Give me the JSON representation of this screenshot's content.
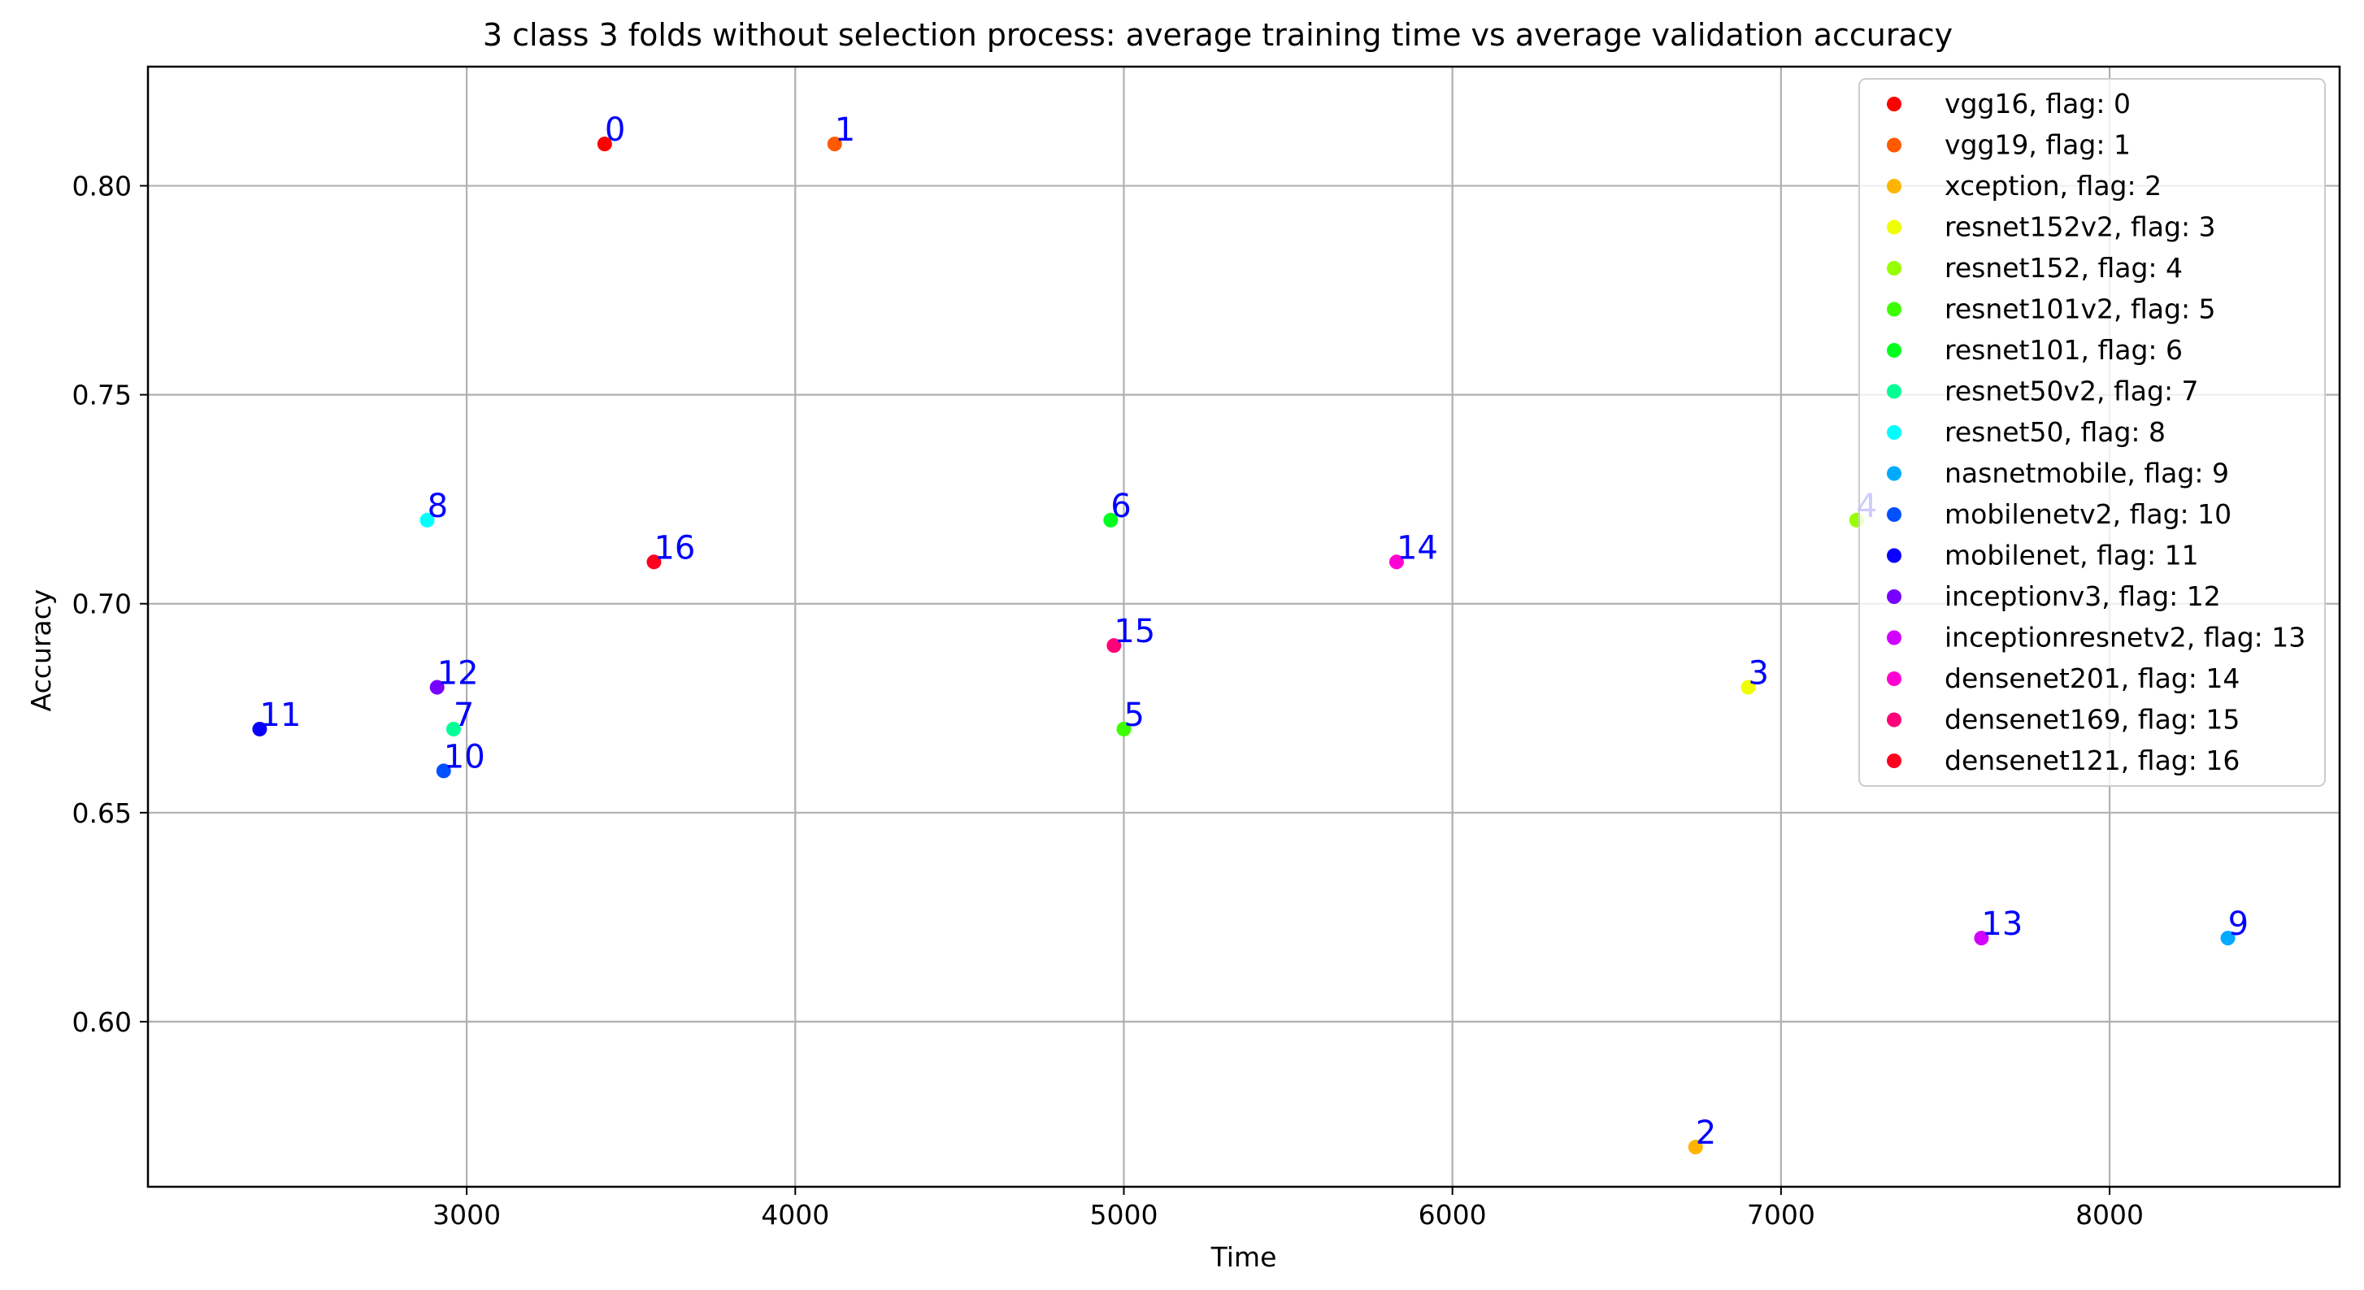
{
  "chart_data": {
    "type": "scatter",
    "title": "3 class 3 folds without selection process: average training time vs average validation accuracy",
    "xlabel": "Time",
    "ylabel": "Accuracy",
    "xlim": [
      2030,
      8700
    ],
    "ylim": [
      0.5605,
      0.8285
    ],
    "xticks": [
      3000,
      4000,
      5000,
      6000,
      7000,
      8000
    ],
    "yticks": [
      0.6,
      0.65,
      0.7,
      0.75,
      0.8
    ],
    "grid": true,
    "legend_position": "top-right",
    "point_label_color": "#0000ff",
    "series": [
      {
        "name": "vgg16, flag: 0",
        "label": "0",
        "x": 3420,
        "y": 0.81,
        "color": "#ff0000"
      },
      {
        "name": "vgg19, flag: 1",
        "label": "1",
        "x": 4120,
        "y": 0.81,
        "color": "#ff5a00"
      },
      {
        "name": "xception, flag: 2",
        "label": "2",
        "x": 6740,
        "y": 0.57,
        "color": "#ffb400"
      },
      {
        "name": "resnet152v2, flag: 3",
        "label": "3",
        "x": 6900,
        "y": 0.68,
        "color": "#f0ff00"
      },
      {
        "name": "resnet152, flag: 4",
        "label": "4",
        "x": 7230,
        "y": 0.72,
        "color": "#96ff00"
      },
      {
        "name": "resnet101v2, flag: 5",
        "label": "5",
        "x": 5000,
        "y": 0.67,
        "color": "#3cff00"
      },
      {
        "name": "resnet101, flag: 6",
        "label": "6",
        "x": 4960,
        "y": 0.72,
        "color": "#00ff1e"
      },
      {
        "name": "resnet50v2, flag: 7",
        "label": "7",
        "x": 2960,
        "y": 0.67,
        "color": "#00ff96"
      },
      {
        "name": "resnet50, flag: 8",
        "label": "8",
        "x": 2880,
        "y": 0.72,
        "color": "#00ffff"
      },
      {
        "name": "nasnetmobile, flag: 9",
        "label": "9",
        "x": 8360,
        "y": 0.62,
        "color": "#00aaff"
      },
      {
        "name": "mobilenetv2, flag: 10",
        "label": "10",
        "x": 2930,
        "y": 0.66,
        "color": "#0050ff"
      },
      {
        "name": "mobilenet, flag: 11",
        "label": "11",
        "x": 2370,
        "y": 0.67,
        "color": "#0a00ff"
      },
      {
        "name": "inceptionv3, flag: 12",
        "label": "12",
        "x": 2910,
        "y": 0.68,
        "color": "#7800ff"
      },
      {
        "name": "inceptionresnetv2, flag: 13",
        "label": "13",
        "x": 7610,
        "y": 0.62,
        "color": "#d200ff"
      },
      {
        "name": "densenet201, flag: 14",
        "label": "14",
        "x": 5830,
        "y": 0.71,
        "color": "#ff00d2"
      },
      {
        "name": "densenet169, flag: 15",
        "label": "15",
        "x": 4970,
        "y": 0.69,
        "color": "#ff0078"
      },
      {
        "name": "densenet121, flag: 16",
        "label": "16",
        "x": 3570,
        "y": 0.71,
        "color": "#ff001e"
      }
    ]
  }
}
